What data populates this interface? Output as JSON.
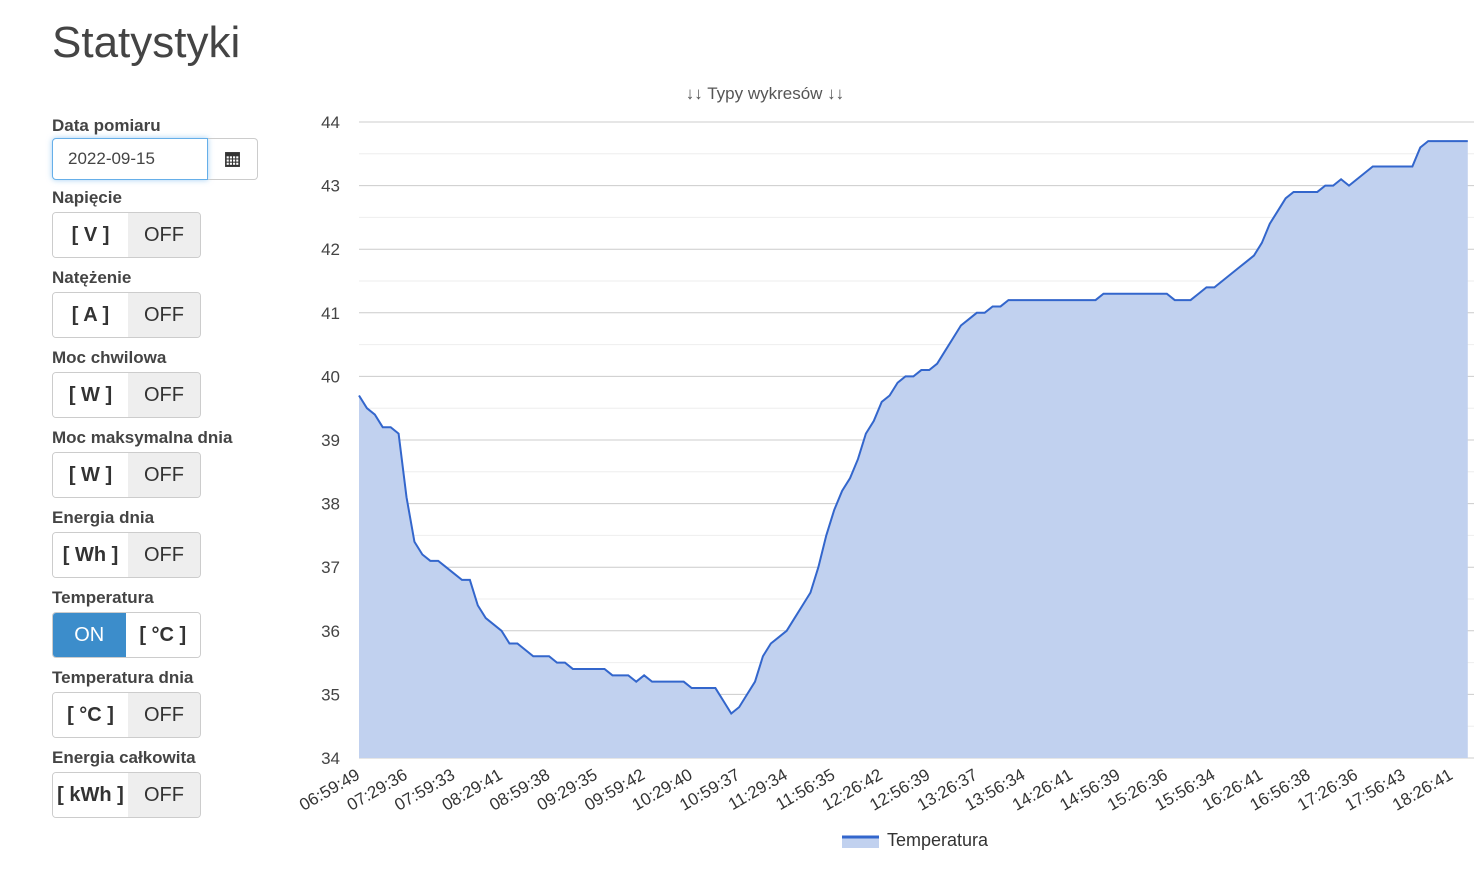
{
  "page_title": "Statystyki",
  "sidebar": {
    "date_label": "Data pomiaru",
    "date_value": "2022-09-15",
    "calendar_icon": "calendar-icon",
    "toggles": [
      {
        "label": "Napięcie",
        "unit": "[ V ]",
        "state": "OFF"
      },
      {
        "label": "Natężenie",
        "unit": "[ A ]",
        "state": "OFF"
      },
      {
        "label": "Moc chwilowa",
        "unit": "[ W ]",
        "state": "OFF"
      },
      {
        "label": "Moc maksymalna dnia",
        "unit": "[ W ]",
        "state": "OFF"
      },
      {
        "label": "Energia dnia",
        "unit": "[ Wh ]",
        "state": "OFF"
      },
      {
        "label": "Temperatura",
        "unit": "[ °C ]",
        "state": "ON"
      },
      {
        "label": "Temperatura dnia",
        "unit": "[ °C ]",
        "state": "OFF"
      },
      {
        "label": "Energia całkowita",
        "unit": "[ kWh ]",
        "state": "OFF"
      }
    ]
  },
  "colors": {
    "line": "#3366cc",
    "fill": "#c1d1ef",
    "on": "#3c8dcb"
  },
  "chart_data": {
    "type": "area",
    "title": "↓↓ Typy wykresów ↓↓",
    "legend": "Temperatura",
    "legend_position": "bottom",
    "ylim": [
      34,
      44
    ],
    "yticks": [
      34,
      35,
      36,
      37,
      38,
      39,
      40,
      41,
      42,
      43,
      44
    ],
    "grid": true,
    "x_tick_every": 6,
    "x_tick_labels": [
      "06:59:49",
      "07:29:36",
      "07:59:33",
      "08:29:41",
      "08:59:38",
      "09:29:35",
      "09:59:42",
      "10:29:40",
      "10:59:37",
      "11:29:34",
      "11:56:35",
      "12:26:42",
      "12:56:39",
      "13:26:37",
      "13:56:34",
      "14:26:41",
      "14:56:39",
      "15:26:36",
      "15:56:34",
      "16:26:41",
      "16:56:38",
      "17:26:36",
      "17:56:43",
      "18:26:41"
    ],
    "values": [
      39.7,
      39.5,
      39.4,
      39.2,
      39.2,
      39.1,
      38.1,
      37.4,
      37.2,
      37.1,
      37.1,
      37.0,
      36.9,
      36.8,
      36.8,
      36.4,
      36.2,
      36.1,
      36.0,
      35.8,
      35.8,
      35.7,
      35.6,
      35.6,
      35.6,
      35.5,
      35.5,
      35.4,
      35.4,
      35.4,
      35.4,
      35.4,
      35.3,
      35.3,
      35.3,
      35.2,
      35.3,
      35.2,
      35.2,
      35.2,
      35.2,
      35.2,
      35.1,
      35.1,
      35.1,
      35.1,
      34.9,
      34.7,
      34.8,
      35.0,
      35.2,
      35.6,
      35.8,
      35.9,
      36.0,
      36.2,
      36.4,
      36.6,
      37.0,
      37.5,
      37.9,
      38.2,
      38.4,
      38.7,
      39.1,
      39.3,
      39.6,
      39.7,
      39.9,
      40.0,
      40.0,
      40.1,
      40.1,
      40.2,
      40.4,
      40.6,
      40.8,
      40.9,
      41.0,
      41.0,
      41.1,
      41.1,
      41.2,
      41.2,
      41.2,
      41.2,
      41.2,
      41.2,
      41.2,
      41.2,
      41.2,
      41.2,
      41.2,
      41.2,
      41.3,
      41.3,
      41.3,
      41.3,
      41.3,
      41.3,
      41.3,
      41.3,
      41.3,
      41.2,
      41.2,
      41.2,
      41.3,
      41.4,
      41.4,
      41.5,
      41.6,
      41.7,
      41.8,
      41.9,
      42.1,
      42.4,
      42.6,
      42.8,
      42.9,
      42.9,
      42.9,
      42.9,
      43.0,
      43.0,
      43.1,
      43.0,
      43.1,
      43.2,
      43.3,
      43.3,
      43.3,
      43.3,
      43.3,
      43.3,
      43.6,
      43.7,
      43.7,
      43.7,
      43.7,
      43.7,
      43.7
    ]
  }
}
